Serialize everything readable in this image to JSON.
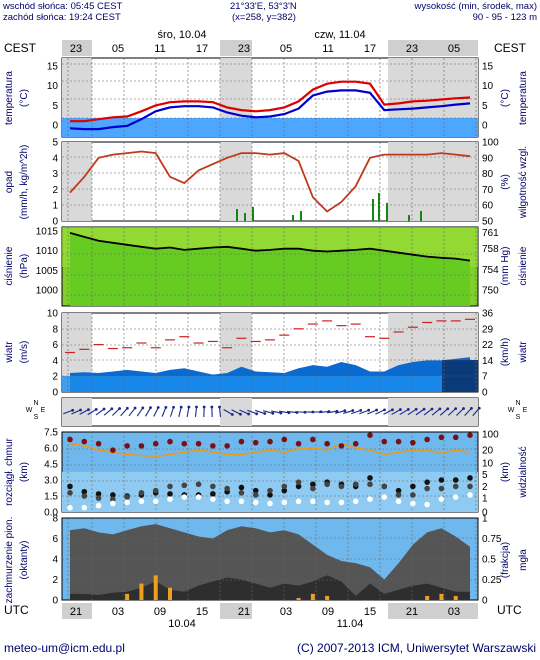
{
  "header": {
    "sunrise": "wschód słońca: 05:45 CEST",
    "sunset": "zachód słońca: 19:24 CEST",
    "coords": "21°33'E, 53°3'N",
    "grid": "(x=258, y=382)",
    "alt_title": "wysokość (min, środek, max)",
    "alt_values": "90 - 95 - 123 m"
  },
  "axis_top": {
    "tz": "CEST",
    "day1": "śro, 10.04",
    "day2": "czw, 11.04",
    "hours": [
      "23",
      "05",
      "11",
      "17",
      "23",
      "05",
      "11",
      "17",
      "23",
      "05"
    ]
  },
  "axis_bottom": {
    "tz": "UTC",
    "hours": [
      "21",
      "03",
      "09",
      "15",
      "21",
      "03",
      "09",
      "15",
      "21",
      "03"
    ],
    "date1": "10.04",
    "date2": "11.04"
  },
  "footer": {
    "email": "meteo-um@icm.edu.pl",
    "copyright": "(C) 2007-2013 ICM, Uniwersytet Warszawski"
  },
  "panels": {
    "temperature": {
      "left_label": "temperatura",
      "left_unit": "(°C)",
      "right_label": "temperatura",
      "right_unit": "(°C)",
      "ticks": [
        "0",
        "5",
        "10",
        "15"
      ]
    },
    "precip": {
      "left_label": "opad",
      "left_unit": "(mm/h, kg/m^2h)",
      "right_label": "wilgotność wzgl.",
      "right_unit": "(%)",
      "left_ticks": [
        "0",
        "1",
        "2",
        "3",
        "4",
        "5"
      ],
      "right_ticks": [
        "50",
        "60",
        "70",
        "80",
        "90",
        "100"
      ]
    },
    "pressure": {
      "left_label": "ciśnienie",
      "left_unit": "(hPa)",
      "right_label": "ciśnienie",
      "right_unit": "(mm Hg)",
      "left_ticks": [
        "1000",
        "1005",
        "1010",
        "1015"
      ],
      "right_ticks": [
        "750",
        "754",
        "758",
        "761"
      ]
    },
    "wind": {
      "left_label": "wiatr",
      "left_unit": "(m/s)",
      "right_label": "wiatr",
      "right_unit": "(km/h)",
      "left_ticks": [
        "0",
        "2",
        "4",
        "6",
        "8",
        "10"
      ],
      "right_ticks": [
        "0",
        "7",
        "14",
        "22",
        "29",
        "36"
      ]
    },
    "winddir": {
      "compass_n": "N",
      "compass_e": "E",
      "compass_s": "S",
      "compass_w": "W"
    },
    "visibility": {
      "left_label": "rozciągł. chmur",
      "left_unit": "(km)",
      "right_label": "widzialność",
      "right_unit": "(km)",
      "left_ticks": [
        "0.0",
        "1.5",
        "3.0",
        "4.5",
        "6.0",
        "7.5"
      ],
      "right_ticks": [
        "0",
        "1",
        "2",
        "5",
        "10",
        "20",
        "100"
      ]
    },
    "clouds": {
      "left_label": "zachmurzenie pion.",
      "left_unit": "(oktanty)",
      "right_label": "mgła",
      "right_unit": "(frakcja)",
      "left_ticks": [
        "0",
        "2",
        "4",
        "6",
        "8"
      ],
      "right_ticks": [
        "0",
        "0.25",
        "0.5",
        "0.75",
        "1"
      ]
    }
  },
  "chart_data": [
    {
      "type": "line",
      "panel": "temperature",
      "x_hours_utc": [
        21,
        23,
        1,
        3,
        5,
        7,
        9,
        11,
        13,
        15,
        17,
        19,
        21,
        23,
        1,
        3,
        5,
        7,
        9,
        11,
        13,
        15,
        17,
        19,
        21,
        23,
        1,
        3,
        5
      ],
      "series": [
        {
          "values": [
            1.0,
            1.0,
            1.5,
            2.0,
            2.2,
            3.5,
            5.0,
            5.8,
            6.0,
            6.0,
            5.8,
            4.5,
            3.8,
            3.5,
            3.8,
            4.5,
            6.0,
            9.0,
            10.5,
            11.0,
            11.0,
            10.5,
            5.2,
            5.5,
            6.0,
            6.2,
            6.5,
            6.8,
            7.0
          ]
        },
        {
          "values": [
            -0.8,
            -1.0,
            -1.0,
            -0.5,
            -0.2,
            1.5,
            3.5,
            4.5,
            4.8,
            4.8,
            4.5,
            3.2,
            2.4,
            2.0,
            2.2,
            2.8,
            4.2,
            7.5,
            8.5,
            8.8,
            8.8,
            8.2,
            3.8,
            4.0,
            4.2,
            4.5,
            4.8,
            5.2,
            5.5
          ]
        }
      ],
      "ylim": [
        -3,
        17
      ]
    },
    {
      "type": "line",
      "panel": "precip_humidity",
      "x_hours_utc": [
        21,
        23,
        1,
        3,
        5,
        7,
        9,
        11,
        13,
        15,
        17,
        19,
        21,
        23,
        1,
        3,
        5,
        7,
        9,
        11,
        13,
        15,
        17,
        19,
        21,
        23,
        1,
        3,
        5
      ],
      "series": [
        {
          "values": [
            68,
            78,
            90,
            92,
            93,
            94,
            93,
            78,
            74,
            82,
            86,
            90,
            93,
            93,
            92,
            93,
            88,
            65,
            56,
            62,
            72,
            90,
            92,
            92,
            92,
            92,
            93,
            92,
            91
          ]
        }
      ],
      "ylim": [
        50,
        100
      ]
    },
    {
      "type": "line",
      "panel": "pressure",
      "x_hours_utc": [
        21,
        23,
        1,
        3,
        5,
        7,
        9,
        11,
        13,
        15,
        17,
        19,
        21,
        23,
        1,
        3,
        5,
        7,
        9,
        11,
        13,
        15,
        17,
        19,
        21,
        23,
        1,
        3,
        5
      ],
      "series": [
        {
          "values": [
            1014.5,
            1013.5,
            1012.5,
            1012.0,
            1011.5,
            1011.0,
            1010.5,
            1010.8,
            1010.2,
            1010.5,
            1010.8,
            1011.0,
            1010.5,
            1010.0,
            1010.2,
            1010.5,
            1010.5,
            1010.0,
            1009.8,
            1010.0,
            1010.2,
            1010.5,
            1010.0,
            1009.5,
            1009.0,
            1008.5,
            1008.2,
            1008.0,
            1007.5
          ]
        }
      ],
      "ylim": [
        996,
        1016
      ]
    },
    {
      "type": "area",
      "panel": "wind",
      "x_hours_utc": [
        21,
        23,
        1,
        3,
        5,
        7,
        9,
        11,
        13,
        15,
        17,
        19,
        21,
        23,
        1,
        3,
        5,
        7,
        9,
        11,
        13,
        15,
        17,
        19,
        21,
        23,
        1,
        3,
        5
      ],
      "series": [
        {
          "values": [
            2.4,
            2.5,
            2.4,
            2.6,
            2.8,
            2.6,
            2.4,
            2.8,
            3.0,
            2.6,
            2.2,
            2.4,
            3.2,
            2.6,
            2.5,
            2.4,
            3.0,
            3.4,
            3.2,
            3.8,
            3.4,
            2.6,
            2.6,
            3.4,
            3.8,
            4.0,
            4.0,
            4.2,
            4.4
          ]
        },
        {
          "values": [
            5.0,
            5.4,
            6.0,
            5.5,
            5.6,
            6.2,
            5.6,
            6.6,
            7.0,
            6.2,
            6.4,
            5.6,
            6.8,
            6.4,
            6.6,
            7.2,
            8.0,
            8.6,
            9.0,
            8.4,
            8.6,
            7.0,
            6.8,
            7.6,
            8.2,
            8.8,
            9.0,
            9.0,
            9.2
          ]
        }
      ],
      "ylim": [
        0,
        10
      ]
    },
    {
      "type": "line",
      "panel": "visibility_ceiling",
      "x_hours_utc": [
        21,
        23,
        1,
        3,
        5,
        7,
        9,
        11,
        13,
        15,
        17,
        19,
        21,
        23,
        1,
        3,
        5,
        7,
        9,
        11,
        13,
        15,
        17,
        19,
        21,
        23,
        1,
        3,
        5
      ],
      "series": [
        {
          "values": [
            6.4,
            6.2,
            5.8,
            5.6,
            5.4,
            5.3,
            5.2,
            5.4,
            5.6,
            5.8,
            5.6,
            5.4,
            5.4,
            5.6,
            5.8,
            5.6,
            5.9,
            6.0,
            5.8,
            6.4,
            6.0,
            5.8,
            5.4,
            5.6,
            5.8,
            5.8,
            5.5,
            5.8,
            5.6
          ]
        },
        {
          "values": [
            6.8,
            6.6,
            6.4,
            5.8,
            6.2,
            6.2,
            6.4,
            6.6,
            6.4,
            6.4,
            6.2,
            6.2,
            6.6,
            6.5,
            6.6,
            6.8,
            6.4,
            6.8,
            6.4,
            6.2,
            6.4,
            7.2,
            6.6,
            6.6,
            6.5,
            6.8,
            7.0,
            7.0,
            7.2
          ]
        },
        {
          "values": [
            2.4,
            1.9,
            1.7,
            1.6,
            1.5,
            1.6,
            1.8,
            1.7,
            1.6,
            1.6,
            1.7,
            1.9,
            2.3,
            2.0,
            1.6,
            2.0,
            2.4,
            2.6,
            2.8,
            2.6,
            2.4,
            3.2,
            2.4,
            2.0,
            2.4,
            2.8,
            3.0,
            3.0,
            3.2
          ]
        },
        {
          "values": [
            1.8,
            1.5,
            1.3,
            1.2,
            1.4,
            1.8,
            2.0,
            2.4,
            2.5,
            2.6,
            2.4,
            2.2,
            1.8,
            1.6,
            2.0,
            2.4,
            2.8,
            2.2,
            2.6,
            2.4,
            2.6,
            2.6,
            2.4,
            1.6,
            1.6,
            2.2,
            2.2,
            2.4,
            2.4
          ]
        },
        {
          "values": [
            0.4,
            0.4,
            0.6,
            0.8,
            0.9,
            1.0,
            1.0,
            1.2,
            1.4,
            1.4,
            1.2,
            1.0,
            1.0,
            0.9,
            0.8,
            0.9,
            1.0,
            1.0,
            0.9,
            0.9,
            1.0,
            1.2,
            1.4,
            1.0,
            0.8,
            0.7,
            1.2,
            1.4,
            1.6
          ]
        }
      ],
      "ylim": [
        0,
        7.5
      ]
    },
    {
      "type": "area",
      "panel": "clouds_fog",
      "x_hours_utc": [
        21,
        23,
        1,
        3,
        5,
        7,
        9,
        11,
        13,
        15,
        17,
        19,
        21,
        23,
        1,
        3,
        5,
        7,
        9,
        11,
        13,
        15,
        17,
        19,
        21,
        23,
        1,
        3,
        5
      ],
      "series": [
        {
          "values": [
            6.8,
            7.0,
            6.6,
            6.4,
            6.8,
            7.2,
            7.4,
            7.0,
            6.6,
            6.2,
            6.0,
            6.8,
            7.2,
            7.0,
            6.6,
            6.8,
            6.4,
            5.4,
            4.4,
            3.8,
            3.6,
            3.2,
            2.0,
            3.6,
            5.4,
            6.6,
            7.0,
            6.2,
            5.2
          ]
        },
        {
          "values": [
            0.6,
            0.6,
            0.5,
            0.7,
            0.8,
            1.2,
            1.8,
            1.0,
            0.8,
            1.4,
            1.8,
            2.2,
            2.0,
            1.6,
            1.2,
            1.6,
            1.4,
            1.8,
            2.4,
            1.8,
            0.4,
            1.6,
            0.6,
            1.0,
            1.4,
            1.6,
            1.2,
            0.8,
            0.8
          ]
        },
        {
          "values": [
            0,
            0,
            0,
            0,
            0.6,
            1.6,
            2.4,
            1.2,
            0,
            0,
            0,
            0,
            0,
            0,
            0,
            0,
            0.2,
            0.6,
            0.4,
            0,
            0,
            0,
            0,
            0,
            0,
            0.4,
            0.6,
            0.4,
            0
          ]
        }
      ],
      "ylim": [
        0,
        8
      ]
    }
  ]
}
